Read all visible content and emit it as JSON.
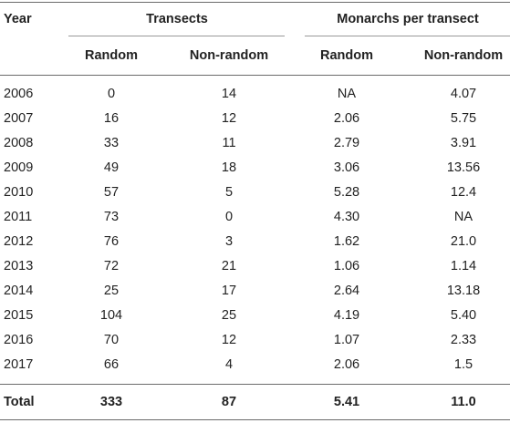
{
  "headers": {
    "year": "Year",
    "transects": "Transects",
    "monarchs_per_transect": "Monarchs per transect",
    "random": "Random",
    "non_random": "Non-random"
  },
  "rows": [
    {
      "year": "2006",
      "t_random": "0",
      "t_nonrandom": "14",
      "m_random": "NA",
      "m_nonrandom": "4.07"
    },
    {
      "year": "2007",
      "t_random": "16",
      "t_nonrandom": "12",
      "m_random": "2.06",
      "m_nonrandom": "5.75"
    },
    {
      "year": "2008",
      "t_random": "33",
      "t_nonrandom": "11",
      "m_random": "2.79",
      "m_nonrandom": "3.91"
    },
    {
      "year": "2009",
      "t_random": "49",
      "t_nonrandom": "18",
      "m_random": "3.06",
      "m_nonrandom": "13.56"
    },
    {
      "year": "2010",
      "t_random": "57",
      "t_nonrandom": "5",
      "m_random": "5.28",
      "m_nonrandom": "12.4"
    },
    {
      "year": "2011",
      "t_random": "73",
      "t_nonrandom": "0",
      "m_random": "4.30",
      "m_nonrandom": "NA"
    },
    {
      "year": "2012",
      "t_random": "76",
      "t_nonrandom": "3",
      "m_random": "1.62",
      "m_nonrandom": "21.0"
    },
    {
      "year": "2013",
      "t_random": "72",
      "t_nonrandom": "21",
      "m_random": "1.06",
      "m_nonrandom": "1.14"
    },
    {
      "year": "2014",
      "t_random": "25",
      "t_nonrandom": "17",
      "m_random": "2.64",
      "m_nonrandom": "13.18"
    },
    {
      "year": "2015",
      "t_random": "104",
      "t_nonrandom": "25",
      "m_random": "4.19",
      "m_nonrandom": "5.40"
    },
    {
      "year": "2016",
      "t_random": "70",
      "t_nonrandom": "12",
      "m_random": "1.07",
      "m_nonrandom": "2.33"
    },
    {
      "year": "2017",
      "t_random": "66",
      "t_nonrandom": "4",
      "m_random": "2.06",
      "m_nonrandom": "1.5"
    }
  ],
  "total": {
    "label": "Total",
    "t_random": "333",
    "t_nonrandom": "87",
    "m_random": "5.41",
    "m_nonrandom": "11.0"
  }
}
